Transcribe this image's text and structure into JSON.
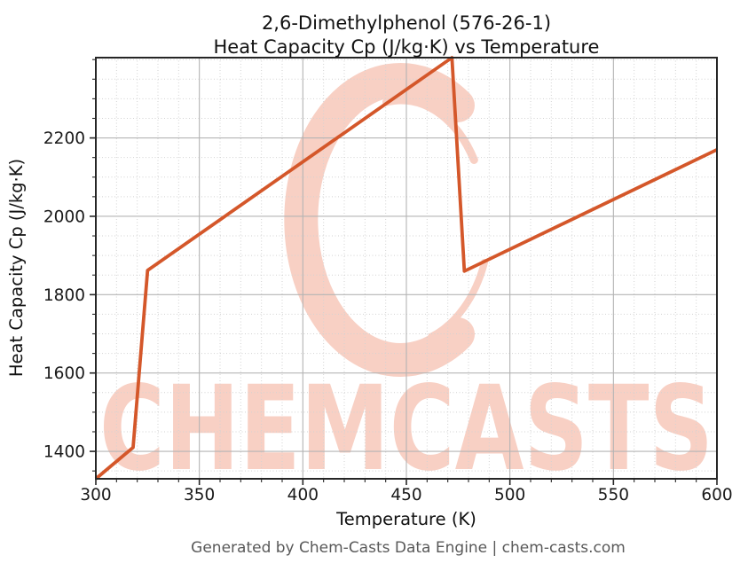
{
  "figure": {
    "title_line1": "2,6-Dimethylphenol (576-26-1)",
    "title_line2": "Heat Capacity Cp (J/kg·K) vs Temperature",
    "footer": "Generated by Chem-Casts Data Engine | chem-casts.com",
    "watermark_text": "CHEMCASTS"
  },
  "chart_data": {
    "type": "line",
    "title": "2,6-Dimethylphenol (576-26-1)\nHeat Capacity Cp (J/kg·K) vs Temperature",
    "xlabel": "Temperature (K)",
    "ylabel": "Heat Capacity Cp (J/kg·K)",
    "xlim": [
      300,
      600
    ],
    "ylim": [
      1330,
      2405
    ],
    "x_ticks": [
      300,
      350,
      400,
      450,
      500,
      550,
      600
    ],
    "y_ticks": [
      1400,
      1600,
      1800,
      2000,
      2200
    ],
    "x_minor_step": 10,
    "y_minor_step": 50,
    "grid": "major-solid + minor-dotted",
    "legend": "none",
    "series": [
      {
        "name": "Heat Capacity Cp",
        "color": "#d4572a",
        "points": [
          [
            300,
            1330
          ],
          [
            318,
            1410
          ],
          [
            325,
            1862
          ],
          [
            472,
            2405
          ],
          [
            478,
            1860
          ],
          [
            600,
            2170
          ]
        ]
      }
    ],
    "colors": {
      "line": "#d4572a",
      "watermark": "#f8d0c4",
      "major_grid": "#b4b4b4",
      "minor_grid": "#d2d2d2",
      "spine": "#262626",
      "tick_text": "#1a1a1a",
      "title_text": "#111111",
      "footer_text": "#595959"
    }
  }
}
